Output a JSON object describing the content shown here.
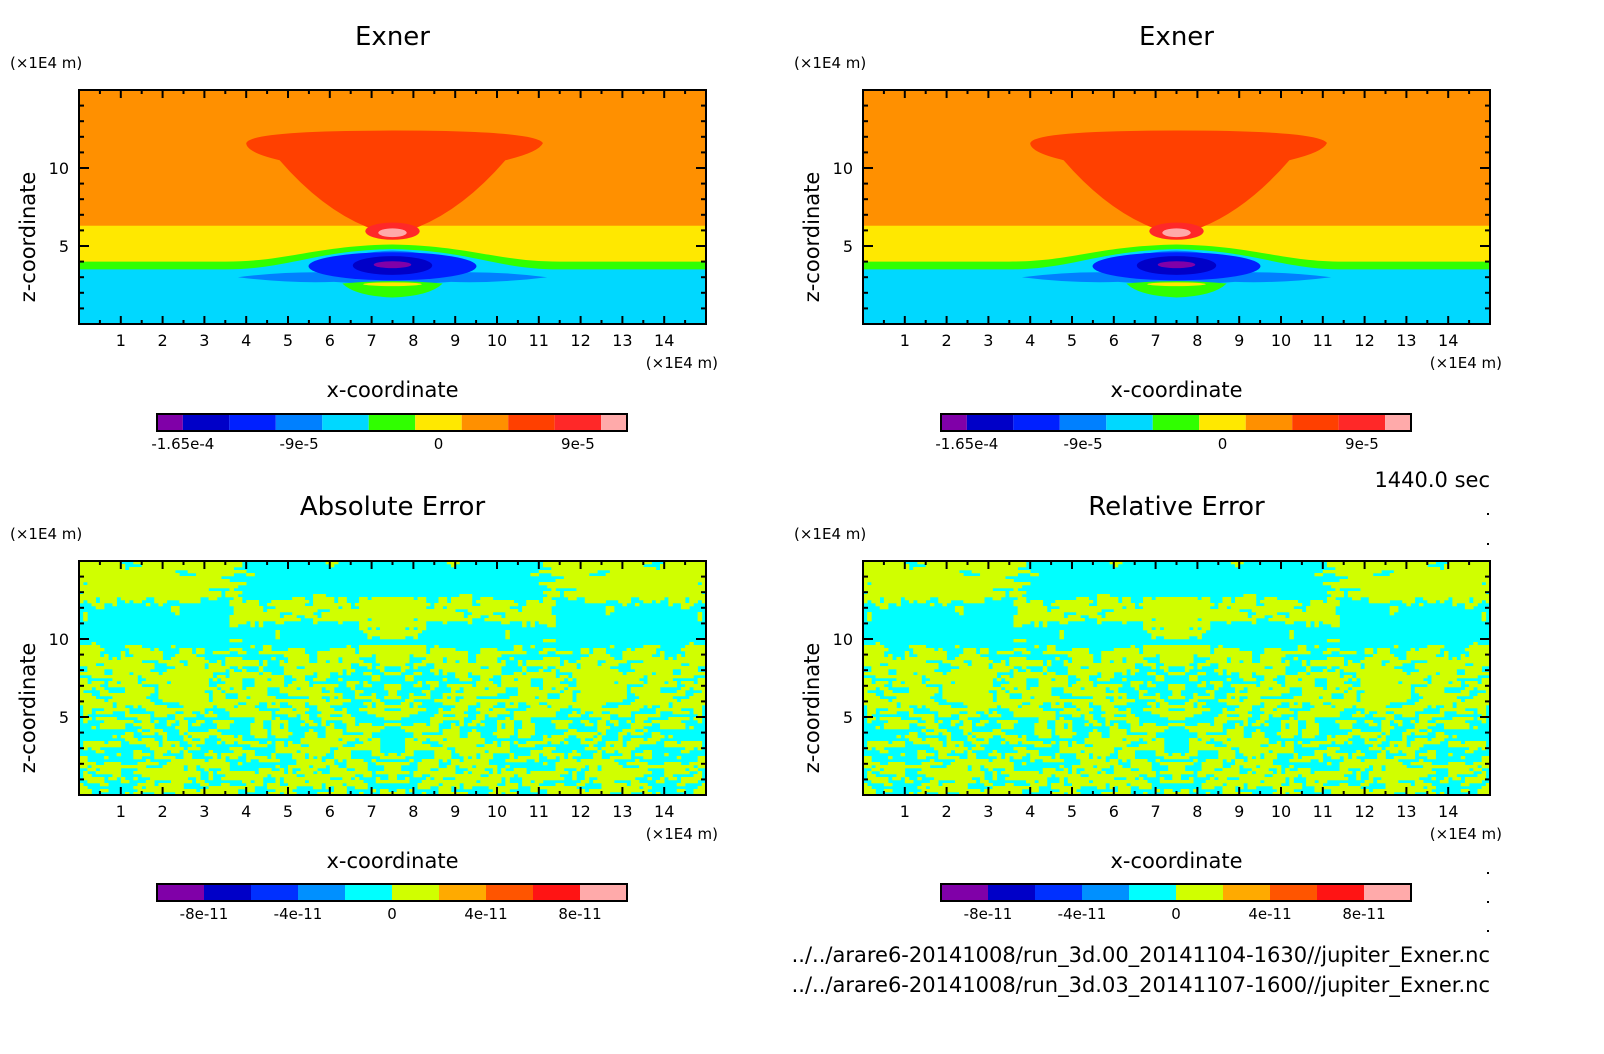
{
  "chart_data": [
    {
      "type": "heatmap",
      "panel": "top-left",
      "title": "Exner",
      "xlabel": "x-coordinate",
      "ylabel": "z-coordinate",
      "x_unit": "(×1E4 m)",
      "y_unit": "(×1E4 m)",
      "xlim": [
        0,
        15
      ],
      "ylim": [
        0,
        15
      ],
      "x_ticks": [
        "1",
        "2",
        "3",
        "4",
        "5",
        "6",
        "7",
        "8",
        "9",
        "10",
        "11",
        "12",
        "13",
        "14"
      ],
      "y_ticks": [
        "5",
        "10"
      ],
      "colorbar": {
        "colors": [
          "#8000a8",
          "#0000c8",
          "#0020ff",
          "#0080ff",
          "#00d8ff",
          "#30ff00",
          "#ffe800",
          "#ff9000",
          "#ff4000",
          "#ff2828",
          "#ffaaaa"
        ],
        "labels": [
          "-1.65e-4",
          "-9e-5",
          "0",
          "9e-5"
        ],
        "label_values": [
          -0.000165,
          -9e-05,
          0,
          9e-05
        ],
        "range": [
          -0.000195,
          0.000195
        ]
      },
      "description": "Inverted-cone positive anomaly (red) centered at x=7.5, z=7-11, with pink max near z=5.7; negative (blue/purple) core near z=3.5 at x=7.5; background orange above z=6, yellow z=4-6, green band z~3.7, cyan below."
    },
    {
      "type": "heatmap",
      "panel": "top-right",
      "title": "Exner",
      "xlabel": "x-coordinate",
      "ylabel": "z-coordinate",
      "x_unit": "(×1E4 m)",
      "y_unit": "(×1E4 m)",
      "xlim": [
        0,
        15
      ],
      "ylim": [
        0,
        15
      ],
      "x_ticks": [
        "1",
        "2",
        "3",
        "4",
        "5",
        "6",
        "7",
        "8",
        "9",
        "10",
        "11",
        "12",
        "13",
        "14"
      ],
      "y_ticks": [
        "5",
        "10"
      ],
      "colorbar": {
        "colors": [
          "#8000a8",
          "#0000c8",
          "#0020ff",
          "#0080ff",
          "#00d8ff",
          "#30ff00",
          "#ffe800",
          "#ff9000",
          "#ff4000",
          "#ff2828",
          "#ffaaaa"
        ],
        "labels": [
          "-1.65e-4",
          "-9e-5",
          "0",
          "9e-5"
        ],
        "label_values": [
          -0.000165,
          -9e-05,
          0,
          9e-05
        ],
        "range": [
          -0.000195,
          0.000195
        ]
      }
    },
    {
      "type": "heatmap",
      "panel": "bottom-left",
      "title": "Absolute Error",
      "xlabel": "x-coordinate",
      "ylabel": "z-coordinate",
      "x_unit": "(×1E4 m)",
      "y_unit": "(×1E4 m)",
      "xlim": [
        0,
        15
      ],
      "ylim": [
        0,
        15
      ],
      "x_ticks": [
        "1",
        "2",
        "3",
        "4",
        "5",
        "6",
        "7",
        "8",
        "9",
        "10",
        "11",
        "12",
        "13",
        "14"
      ],
      "y_ticks": [
        "5",
        "10"
      ],
      "colorbar": {
        "colors": [
          "#8000a8",
          "#0000c8",
          "#0030ff",
          "#0090ff",
          "#00ffff",
          "#d0ff00",
          "#ffaa00",
          "#ff5500",
          "#ff1414",
          "#ffaaaa"
        ],
        "labels": [
          "-8e-11",
          "-4e-11",
          "0",
          "4e-11",
          "8e-11"
        ],
        "label_values": [
          -8e-11,
          -4e-11,
          0,
          4e-11,
          8e-11
        ],
        "range": [
          -1e-10,
          1e-10
        ]
      },
      "description": "Noise-like field alternating between two levels (cyan: -2e-11..0, yellow-green: 0..2e-11), mirror symmetric about x=7.5."
    },
    {
      "type": "heatmap",
      "panel": "bottom-right",
      "title": "Relative Error",
      "xlabel": "x-coordinate",
      "ylabel": "z-coordinate",
      "x_unit": "(×1E4 m)",
      "y_unit": "(×1E4 m)",
      "xlim": [
        0,
        15
      ],
      "ylim": [
        0,
        15
      ],
      "x_ticks": [
        "1",
        "2",
        "3",
        "4",
        "5",
        "6",
        "7",
        "8",
        "9",
        "10",
        "11",
        "12",
        "13",
        "14"
      ],
      "y_ticks": [
        "5",
        "10"
      ],
      "colorbar": {
        "colors": [
          "#8000a8",
          "#0000c8",
          "#0030ff",
          "#0090ff",
          "#00ffff",
          "#d0ff00",
          "#ffaa00",
          "#ff5500",
          "#ff1414",
          "#ffaaaa"
        ],
        "labels": [
          "-8e-11",
          "-4e-11",
          "0",
          "4e-11",
          "8e-11"
        ],
        "label_values": [
          -8e-11,
          -4e-11,
          0,
          4e-11,
          8e-11
        ],
        "range": [
          -1e-10,
          1e-10
        ]
      }
    }
  ],
  "time_label": "1440.0 sec",
  "footer": {
    "file1": "../../arare6-20141008/run_3d.00_20141104-1630//jupiter_Exner.nc",
    "file2": "../../arare6-20141008/run_3d.03_20141107-1600//jupiter_Exner.nc"
  }
}
